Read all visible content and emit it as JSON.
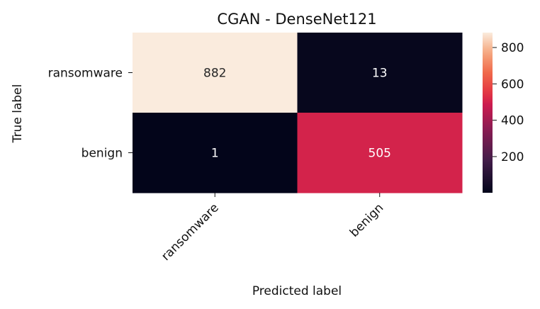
{
  "chart_data": {
    "type": "heatmap",
    "title": "CGAN - DenseNet121",
    "xlabel": "Predicted label",
    "ylabel": "True label",
    "x_categories": [
      "ransomware",
      "benign"
    ],
    "y_categories": [
      "ransomware",
      "benign"
    ],
    "values": [
      [
        882,
        13
      ],
      [
        1,
        505
      ]
    ],
    "colormap": "rocket",
    "colorbar": {
      "ticks": [
        200,
        400,
        600,
        800
      ],
      "range": [
        1,
        882
      ]
    },
    "grid": false,
    "legend": "none"
  }
}
